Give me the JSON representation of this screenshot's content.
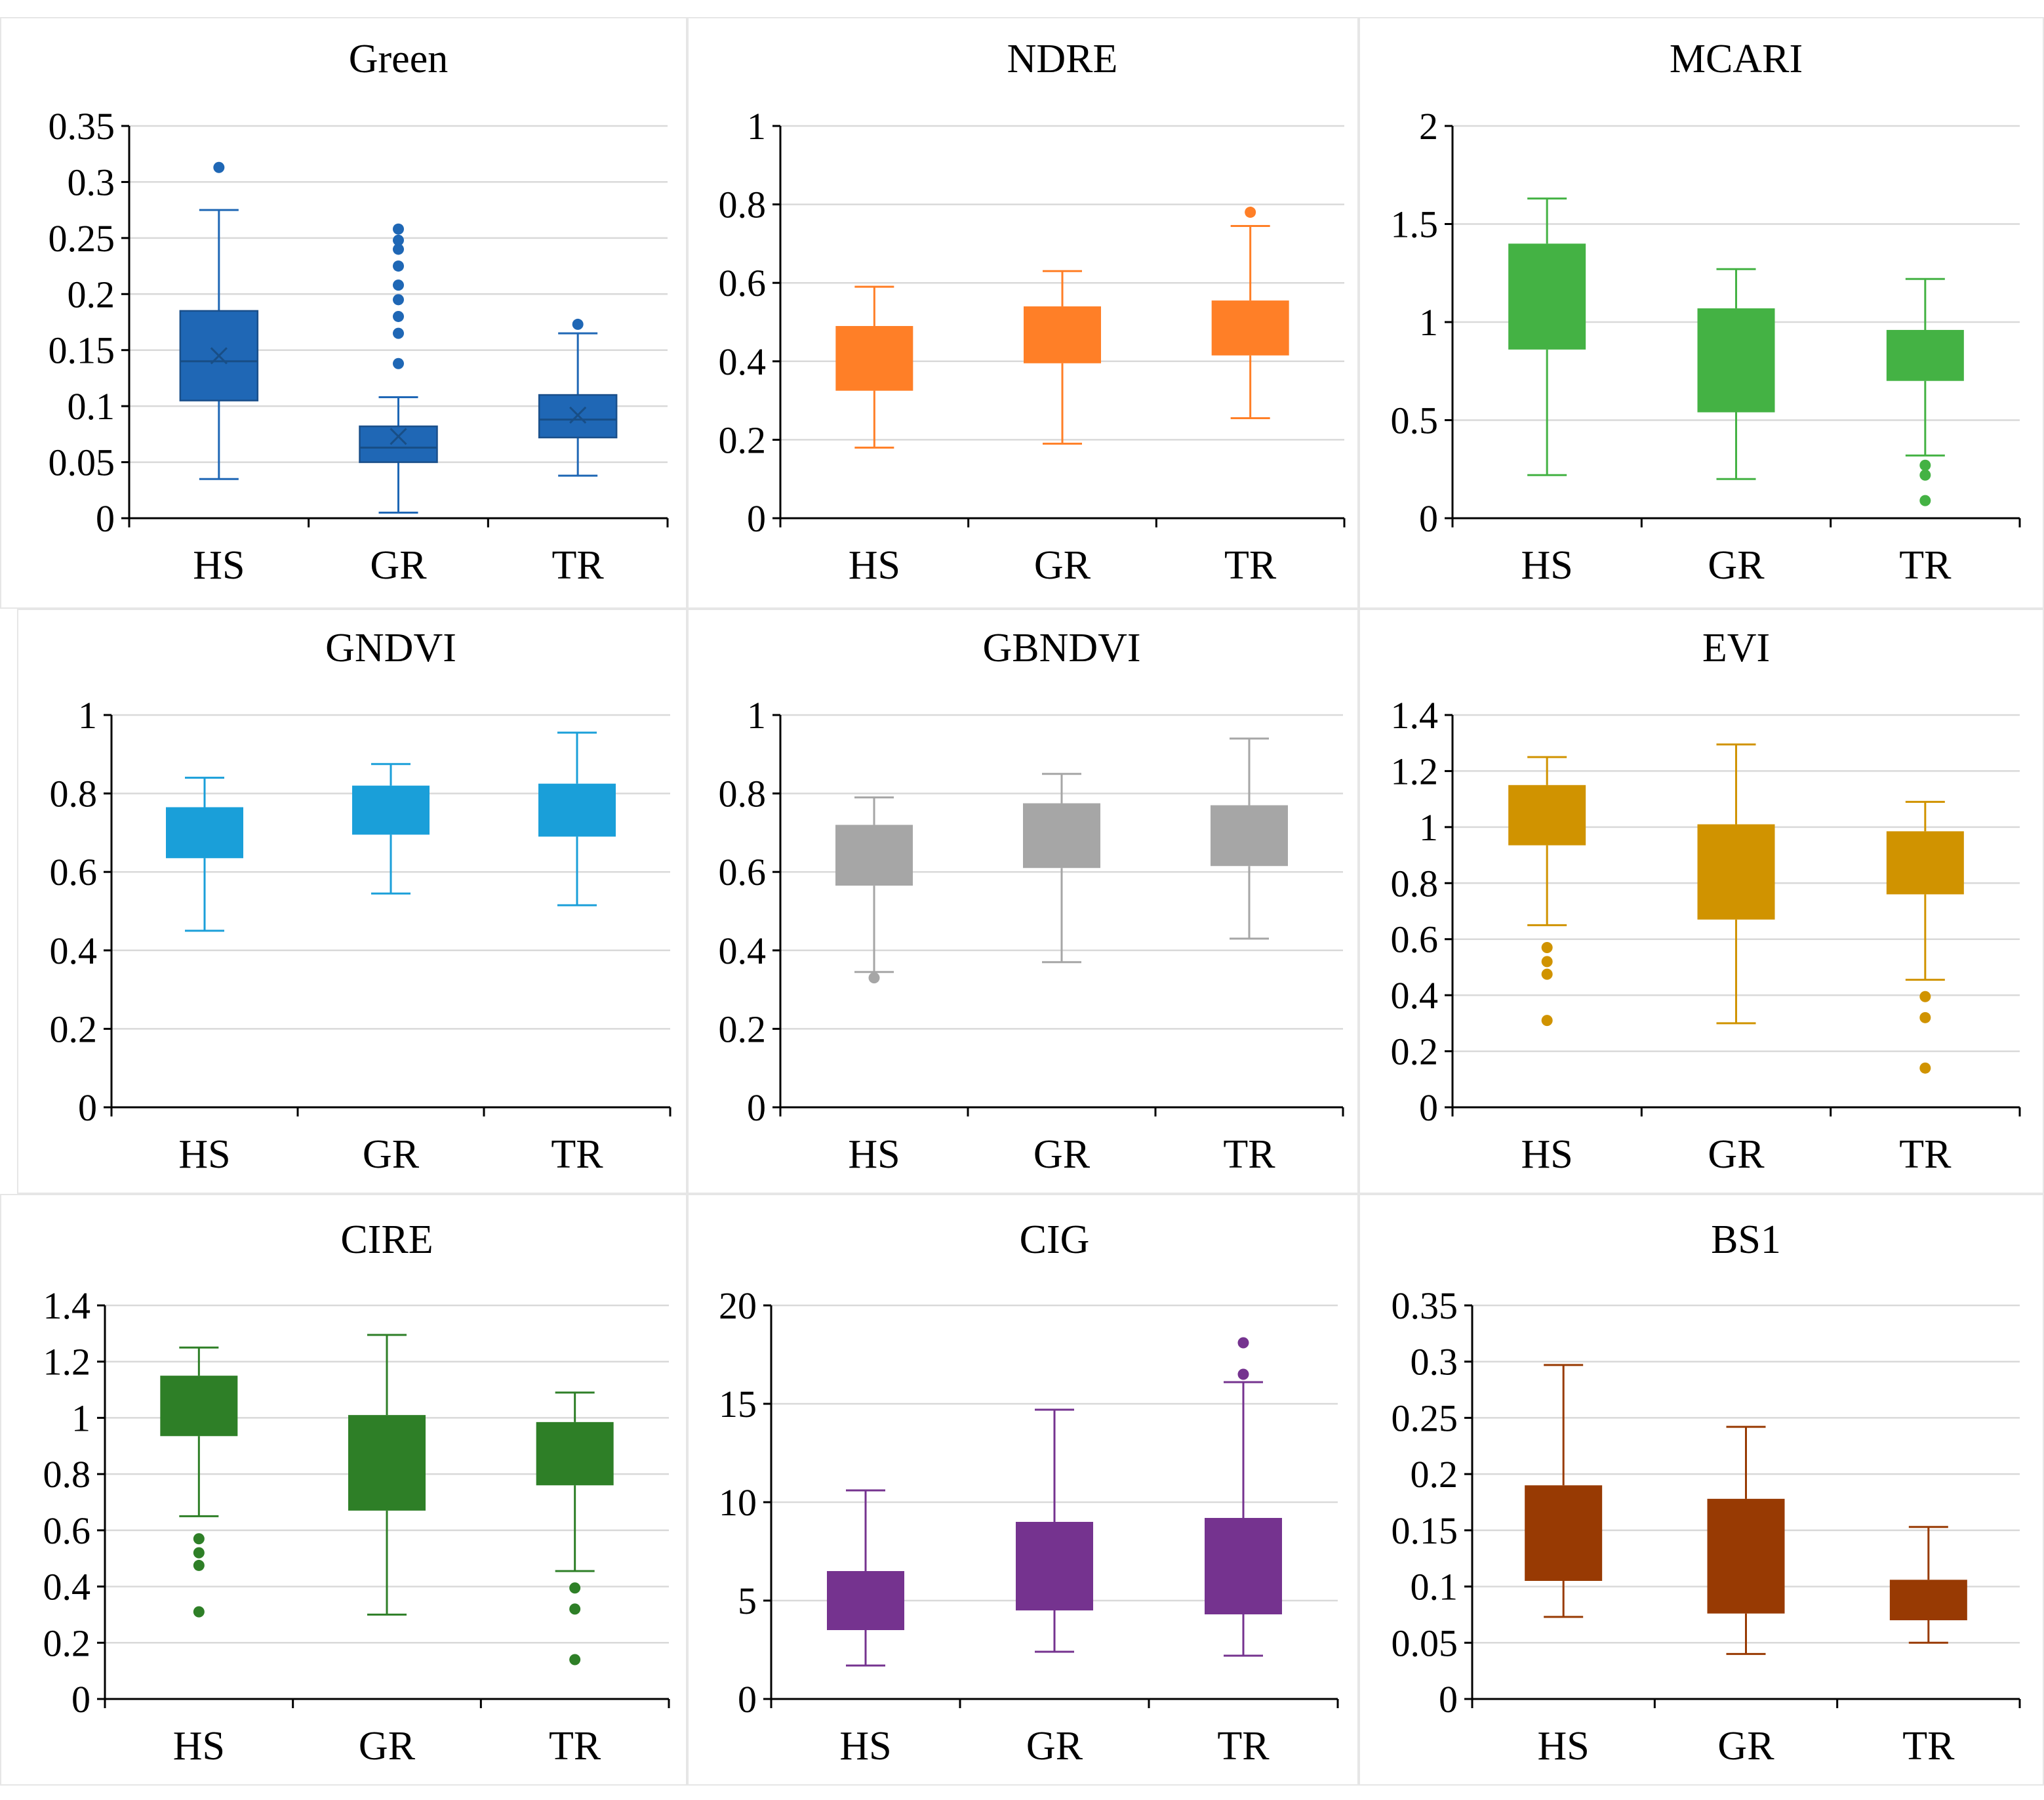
{
  "chart_data": [
    {
      "type": "box",
      "title": "Green",
      "categories": [
        "HS",
        "GR",
        "TR"
      ],
      "color": "#1f67b5",
      "ylim": [
        0,
        0.35
      ],
      "yticks": [
        0,
        0.05,
        0.1,
        0.15,
        0.2,
        0.25,
        0.3,
        0.35
      ],
      "ytick_labels": [
        "0",
        "0.05",
        "0.1",
        "0.15",
        "0.2",
        "0.25",
        "0.3",
        "0.35"
      ],
      "boxes": [
        {
          "min": 0.035,
          "q1": 0.105,
          "median": 0.14,
          "q3": 0.185,
          "max": 0.275,
          "mean": 0.145,
          "outliers": [
            0.313
          ]
        },
        {
          "min": 0.005,
          "q1": 0.05,
          "median": 0.063,
          "q3": 0.082,
          "max": 0.108,
          "mean": 0.073,
          "outliers": [
            0.138,
            0.165,
            0.18,
            0.195,
            0.208,
            0.225,
            0.24,
            0.248,
            0.258
          ]
        },
        {
          "min": 0.038,
          "q1": 0.072,
          "median": 0.088,
          "q3": 0.11,
          "max": 0.165,
          "mean": 0.092,
          "outliers": [
            0.173
          ]
        }
      ]
    },
    {
      "type": "box",
      "title": "NDRE",
      "categories": [
        "HS",
        "GR",
        "TR"
      ],
      "color": "#ff7f27",
      "ylim": [
        0,
        1
      ],
      "yticks": [
        0,
        0.2,
        0.4,
        0.6,
        0.8,
        1
      ],
      "ytick_labels": [
        "0",
        "0.2",
        "0.4",
        "0.6",
        "0.8",
        "1"
      ],
      "boxes": [
        {
          "min": 0.18,
          "q1": 0.325,
          "median": 0.325,
          "q3": 0.49,
          "max": 0.59,
          "outliers": []
        },
        {
          "min": 0.19,
          "q1": 0.395,
          "median": 0.395,
          "q3": 0.54,
          "max": 0.63,
          "outliers": []
        },
        {
          "min": 0.255,
          "q1": 0.415,
          "median": 0.415,
          "q3": 0.555,
          "max": 0.745,
          "outliers": [
            0.78
          ]
        }
      ]
    },
    {
      "type": "box",
      "title": "MCARI",
      "categories": [
        "HS",
        "GR",
        "TR"
      ],
      "color": "#44b244",
      "ylim": [
        0,
        2
      ],
      "yticks": [
        0,
        0.5,
        1,
        1.5,
        2
      ],
      "ytick_labels": [
        "0",
        "0.5",
        "1",
        "1.5",
        "2"
      ],
      "boxes": [
        {
          "min": 0.22,
          "q1": 0.86,
          "median": 0.86,
          "q3": 1.4,
          "max": 1.63,
          "outliers": []
        },
        {
          "min": 0.2,
          "q1": 0.54,
          "median": 0.54,
          "q3": 1.07,
          "max": 1.27,
          "outliers": []
        },
        {
          "min": 0.32,
          "q1": 0.7,
          "median": 0.7,
          "q3": 0.96,
          "max": 1.22,
          "outliers": [
            0.09,
            0.22,
            0.27
          ]
        }
      ]
    },
    {
      "type": "box",
      "title": "GNDVI",
      "categories": [
        "HS",
        "GR",
        "TR"
      ],
      "color": "#1a9fd9",
      "ylim": [
        0,
        1
      ],
      "yticks": [
        0,
        0.2,
        0.4,
        0.6,
        0.8,
        1
      ],
      "ytick_labels": [
        "0",
        "0.2",
        "0.4",
        "0.6",
        "0.8",
        "1"
      ],
      "boxes": [
        {
          "min": 0.45,
          "q1": 0.635,
          "median": 0.635,
          "q3": 0.765,
          "max": 0.84,
          "outliers": []
        },
        {
          "min": 0.545,
          "q1": 0.695,
          "median": 0.695,
          "q3": 0.82,
          "max": 0.875,
          "outliers": []
        },
        {
          "min": 0.515,
          "q1": 0.69,
          "median": 0.69,
          "q3": 0.825,
          "max": 0.955,
          "outliers": []
        }
      ]
    },
    {
      "type": "box",
      "title": "GBNDVI",
      "categories": [
        "HS",
        "GR",
        "TR"
      ],
      "color": "#a6a6a6",
      "ylim": [
        0,
        1
      ],
      "yticks": [
        0,
        0.2,
        0.4,
        0.6,
        0.8,
        1
      ],
      "ytick_labels": [
        "0",
        "0.2",
        "0.4",
        "0.6",
        "0.8",
        "1"
      ],
      "boxes": [
        {
          "min": 0.345,
          "q1": 0.565,
          "median": 0.565,
          "q3": 0.72,
          "max": 0.79,
          "outliers": [
            0.33
          ]
        },
        {
          "min": 0.37,
          "q1": 0.61,
          "median": 0.61,
          "q3": 0.775,
          "max": 0.85,
          "outliers": []
        },
        {
          "min": 0.43,
          "q1": 0.615,
          "median": 0.615,
          "q3": 0.77,
          "max": 0.94,
          "outliers": []
        }
      ]
    },
    {
      "type": "box",
      "title": "EVI",
      "categories": [
        "HS",
        "GR",
        "TR"
      ],
      "color": "#d09300",
      "ylim": [
        0,
        1.4
      ],
      "yticks": [
        0,
        0.2,
        0.4,
        0.6,
        0.8,
        1,
        1.2,
        1.4
      ],
      "ytick_labels": [
        "0",
        "0.2",
        "0.4",
        "0.6",
        "0.8",
        "1",
        "1.2",
        "1.4"
      ],
      "boxes": [
        {
          "min": 0.65,
          "q1": 0.935,
          "median": 0.935,
          "q3": 1.15,
          "max": 1.25,
          "outliers": [
            0.31,
            0.475,
            0.52,
            0.57
          ]
        },
        {
          "min": 0.3,
          "q1": 0.67,
          "median": 0.67,
          "q3": 1.01,
          "max": 1.295,
          "outliers": []
        },
        {
          "min": 0.455,
          "q1": 0.76,
          "median": 0.76,
          "q3": 0.985,
          "max": 1.09,
          "outliers": [
            0.14,
            0.32,
            0.395
          ]
        }
      ]
    },
    {
      "type": "box",
      "title": "CIRE",
      "categories": [
        "HS",
        "GR",
        "TR"
      ],
      "color": "#2e7f27",
      "ylim": [
        0,
        1.4
      ],
      "yticks": [
        0,
        0.2,
        0.4,
        0.6,
        0.8,
        1,
        1.2,
        1.4
      ],
      "ytick_labels": [
        "0",
        "0.2",
        "0.4",
        "0.6",
        "0.8",
        "1",
        "1.2",
        "1.4"
      ],
      "boxes": [
        {
          "min": 0.65,
          "q1": 0.935,
          "median": 0.935,
          "q3": 1.15,
          "max": 1.25,
          "outliers": [
            0.31,
            0.475,
            0.52,
            0.57
          ]
        },
        {
          "min": 0.3,
          "q1": 0.67,
          "median": 0.67,
          "q3": 1.01,
          "max": 1.295,
          "outliers": []
        },
        {
          "min": 0.455,
          "q1": 0.76,
          "median": 0.76,
          "q3": 0.985,
          "max": 1.09,
          "outliers": [
            0.14,
            0.32,
            0.395
          ]
        }
      ]
    },
    {
      "type": "box",
      "title": "CIG",
      "categories": [
        "HS",
        "GR",
        "TR"
      ],
      "color": "#75338f",
      "ylim": [
        0,
        20
      ],
      "yticks": [
        0,
        5,
        10,
        15,
        20
      ],
      "ytick_labels": [
        "0",
        "5",
        "10",
        "15",
        "20"
      ],
      "boxes": [
        {
          "min": 1.7,
          "q1": 3.5,
          "median": 3.5,
          "q3": 6.5,
          "max": 10.6,
          "outliers": []
        },
        {
          "min": 2.4,
          "q1": 4.5,
          "median": 4.5,
          "q3": 9.0,
          "max": 14.7,
          "outliers": []
        },
        {
          "min": 2.2,
          "q1": 4.3,
          "median": 4.3,
          "q3": 9.2,
          "max": 16.1,
          "outliers": [
            16.5,
            18.1
          ]
        }
      ]
    },
    {
      "type": "box",
      "title": "BS1",
      "categories": [
        "HS",
        "GR",
        "TR"
      ],
      "color": "#983a03",
      "ylim": [
        0,
        0.35
      ],
      "yticks": [
        0,
        0.05,
        0.1,
        0.15,
        0.2,
        0.25,
        0.3,
        0.35
      ],
      "ytick_labels": [
        "0",
        "0.05",
        "0.1",
        "0.15",
        "0.2",
        "0.25",
        "0.3",
        "0.35"
      ],
      "boxes": [
        {
          "min": 0.073,
          "q1": 0.105,
          "median": 0.105,
          "q3": 0.19,
          "max": 0.297,
          "outliers": []
        },
        {
          "min": 0.04,
          "q1": 0.076,
          "median": 0.076,
          "q3": 0.178,
          "max": 0.242,
          "outliers": []
        },
        {
          "min": 0.05,
          "q1": 0.07,
          "median": 0.07,
          "q3": 0.106,
          "max": 0.153,
          "outliers": []
        }
      ]
    }
  ]
}
